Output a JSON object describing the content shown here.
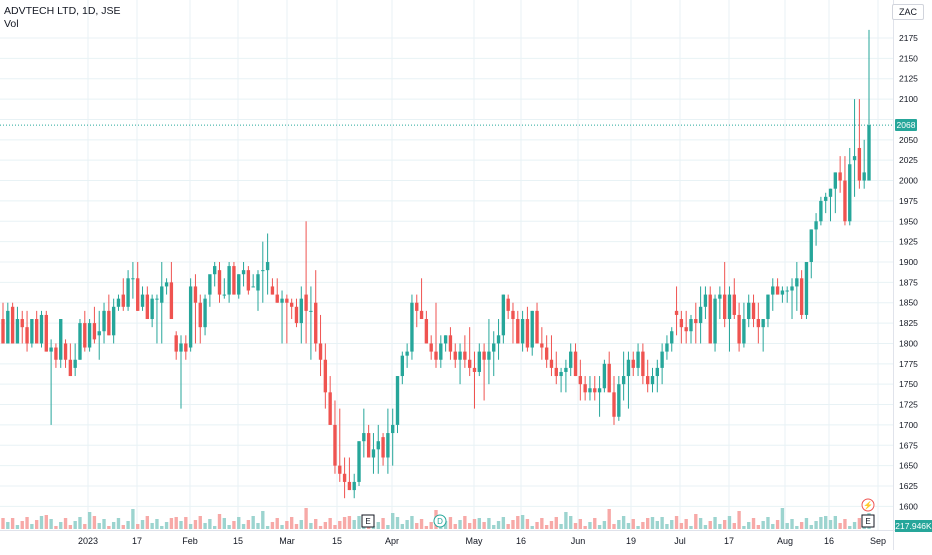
{
  "header": {
    "symbol_line": "ADVTECH LTD, 1D, JSE",
    "volume_label": "Vol",
    "currency": "ZAC"
  },
  "price_axis": {
    "ticks": [
      1600,
      1625,
      1650,
      1675,
      1700,
      1725,
      1750,
      1775,
      1800,
      1825,
      1850,
      1875,
      1900,
      1925,
      1950,
      1975,
      2000,
      2025,
      2050,
      2075,
      2100,
      2125,
      2150,
      2175
    ],
    "current_price_label": "2068",
    "current_price": 2068,
    "volume_label": "217.946K"
  },
  "time_axis": {
    "labels": [
      "2023",
      "17",
      "Feb",
      "15",
      "Mar",
      "15",
      "Apr",
      "May",
      "16",
      "Jun",
      "19",
      "Jul",
      "17",
      "Aug",
      "16",
      "Sep"
    ]
  },
  "events": {
    "earnings_marker": "E",
    "dividend_marker": "D",
    "split_marker": "⚡"
  },
  "colors": {
    "up": "#26a69a",
    "down": "#ef5350",
    "up_volume": "#9cd4cf",
    "down_volume": "#f7a9a7",
    "grid": "#e8f2f5",
    "text": "#131722"
  },
  "chart_data": {
    "type": "candlestick",
    "title": "ADVTECH LTD, 1D, JSE",
    "y_range": [
      1590,
      2195
    ],
    "candles": [
      [
        1830,
        1850,
        1800,
        1800
      ],
      [
        1800,
        1850,
        1800,
        1840
      ],
      [
        1845,
        1850,
        1800,
        1800
      ],
      [
        1800,
        1845,
        1800,
        1830
      ],
      [
        1830,
        1840,
        1800,
        1820
      ],
      [
        1820,
        1840,
        1790,
        1800
      ],
      [
        1800,
        1830,
        1795,
        1830
      ],
      [
        1830,
        1840,
        1800,
        1800
      ],
      [
        1800,
        1840,
        1795,
        1835
      ],
      [
        1835,
        1840,
        1790,
        1790
      ],
      [
        1790,
        1805,
        1700,
        1795
      ],
      [
        1795,
        1800,
        1770,
        1780
      ],
      [
        1780,
        1830,
        1770,
        1830
      ],
      [
        1800,
        1805,
        1770,
        1780
      ],
      [
        1780,
        1800,
        1760,
        1760
      ],
      [
        1770,
        1800,
        1760,
        1780
      ],
      [
        1780,
        1830,
        1780,
        1825
      ],
      [
        1825,
        1840,
        1790,
        1795
      ],
      [
        1795,
        1830,
        1790,
        1825
      ],
      [
        1825,
        1845,
        1800,
        1805
      ],
      [
        1810,
        1840,
        1780,
        1815
      ],
      [
        1815,
        1850,
        1800,
        1840
      ],
      [
        1840,
        1860,
        1810,
        1810
      ],
      [
        1810,
        1855,
        1800,
        1845
      ],
      [
        1845,
        1860,
        1840,
        1855
      ],
      [
        1860,
        1880,
        1840,
        1845
      ],
      [
        1845,
        1890,
        1840,
        1880
      ],
      [
        1880,
        1900,
        1855,
        1880
      ],
      [
        1880,
        1900,
        1840,
        1840
      ],
      [
        1845,
        1870,
        1840,
        1860
      ],
      [
        1860,
        1870,
        1830,
        1830
      ],
      [
        1830,
        1860,
        1820,
        1855
      ],
      [
        1855,
        1860,
        1800,
        1855
      ],
      [
        1850,
        1900,
        1800,
        1870
      ],
      [
        1870,
        1880,
        1860,
        1875
      ],
      [
        1875,
        1900,
        1830,
        1830
      ],
      [
        1810,
        1815,
        1780,
        1790
      ],
      [
        1790,
        1810,
        1720,
        1800
      ],
      [
        1800,
        1810,
        1780,
        1790
      ],
      [
        1795,
        1880,
        1790,
        1870
      ],
      [
        1870,
        1885,
        1800,
        1850
      ],
      [
        1850,
        1860,
        1800,
        1820
      ],
      [
        1820,
        1860,
        1810,
        1855
      ],
      [
        1860,
        1880,
        1845,
        1885
      ],
      [
        1885,
        1900,
        1870,
        1895
      ],
      [
        1890,
        1900,
        1850,
        1860
      ],
      [
        1860,
        1880,
        1855,
        1860
      ],
      [
        1860,
        1900,
        1850,
        1895
      ],
      [
        1895,
        1900,
        1860,
        1860
      ],
      [
        1860,
        1885,
        1855,
        1885
      ],
      [
        1885,
        1900,
        1870,
        1890
      ],
      [
        1890,
        1895,
        1860,
        1865
      ],
      [
        1870,
        1885,
        1870,
        1870
      ],
      [
        1865,
        1890,
        1840,
        1885
      ],
      [
        1890,
        1925,
        1850,
        1890
      ],
      [
        1890,
        1935,
        1860,
        1900
      ],
      [
        1870,
        1880,
        1860,
        1860
      ],
      [
        1860,
        1880,
        1850,
        1850
      ],
      [
        1850,
        1865,
        1800,
        1855
      ],
      [
        1855,
        1860,
        1800,
        1850
      ],
      [
        1850,
        1855,
        1830,
        1845
      ],
      [
        1845,
        1855,
        1820,
        1825
      ],
      [
        1825,
        1870,
        1800,
        1855
      ],
      [
        1860,
        1950,
        1800,
        1840
      ],
      [
        1840,
        1870,
        1780,
        1840
      ],
      [
        1850,
        1890,
        1790,
        1800
      ],
      [
        1800,
        1835,
        1760,
        1780
      ],
      [
        1780,
        1800,
        1720,
        1740
      ],
      [
        1740,
        1760,
        1700,
        1700
      ],
      [
        1700,
        1730,
        1640,
        1650
      ],
      [
        1650,
        1720,
        1630,
        1640
      ],
      [
        1640,
        1660,
        1610,
        1630
      ],
      [
        1630,
        1660,
        1620,
        1620
      ],
      [
        1620,
        1640,
        1610,
        1630
      ],
      [
        1630,
        1680,
        1625,
        1680
      ],
      [
        1680,
        1720,
        1660,
        1690
      ],
      [
        1690,
        1700,
        1660,
        1660
      ],
      [
        1660,
        1690,
        1640,
        1670
      ],
      [
        1670,
        1700,
        1640,
        1680
      ],
      [
        1685,
        1690,
        1650,
        1660
      ],
      [
        1660,
        1720,
        1640,
        1690
      ],
      [
        1690,
        1720,
        1650,
        1700
      ],
      [
        1700,
        1760,
        1690,
        1760
      ],
      [
        1760,
        1790,
        1750,
        1785
      ],
      [
        1785,
        1800,
        1770,
        1790
      ],
      [
        1790,
        1860,
        1780,
        1850
      ],
      [
        1850,
        1860,
        1820,
        1840
      ],
      [
        1840,
        1880,
        1830,
        1830
      ],
      [
        1830,
        1840,
        1800,
        1800
      ],
      [
        1800,
        1810,
        1780,
        1790
      ],
      [
        1790,
        1850,
        1770,
        1780
      ],
      [
        1780,
        1810,
        1770,
        1800
      ],
      [
        1800,
        1810,
        1790,
        1810
      ],
      [
        1810,
        1820,
        1780,
        1790
      ],
      [
        1790,
        1800,
        1770,
        1780
      ],
      [
        1780,
        1800,
        1750,
        1790
      ],
      [
        1790,
        1810,
        1770,
        1780
      ],
      [
        1780,
        1820,
        1760,
        1770
      ],
      [
        1770,
        1790,
        1720,
        1765
      ],
      [
        1765,
        1800,
        1760,
        1790
      ],
      [
        1790,
        1800,
        1730,
        1780
      ],
      [
        1780,
        1830,
        1750,
        1790
      ],
      [
        1790,
        1815,
        1760,
        1800
      ],
      [
        1800,
        1830,
        1780,
        1810
      ],
      [
        1810,
        1860,
        1800,
        1860
      ],
      [
        1855,
        1860,
        1830,
        1840
      ],
      [
        1840,
        1850,
        1800,
        1830
      ],
      [
        1830,
        1840,
        1800,
        1800
      ],
      [
        1800,
        1840,
        1790,
        1830
      ],
      [
        1830,
        1845,
        1790,
        1795
      ],
      [
        1795,
        1840,
        1785,
        1840
      ],
      [
        1840,
        1850,
        1800,
        1800
      ],
      [
        1800,
        1820,
        1780,
        1795
      ],
      [
        1795,
        1810,
        1770,
        1780
      ],
      [
        1780,
        1810,
        1760,
        1770
      ],
      [
        1770,
        1790,
        1750,
        1760
      ],
      [
        1760,
        1770,
        1740,
        1765
      ],
      [
        1765,
        1780,
        1740,
        1770
      ],
      [
        1770,
        1800,
        1760,
        1790
      ],
      [
        1790,
        1800,
        1760,
        1760
      ],
      [
        1760,
        1780,
        1730,
        1750
      ],
      [
        1750,
        1760,
        1730,
        1740
      ],
      [
        1740,
        1760,
        1730,
        1745
      ],
      [
        1745,
        1760,
        1730,
        1740
      ],
      [
        1740,
        1760,
        1710,
        1745
      ],
      [
        1745,
        1780,
        1740,
        1775
      ],
      [
        1775,
        1790,
        1740,
        1740
      ],
      [
        1740,
        1760,
        1700,
        1710
      ],
      [
        1710,
        1760,
        1705,
        1750
      ],
      [
        1750,
        1790,
        1730,
        1760
      ],
      [
        1760,
        1790,
        1720,
        1780
      ],
      [
        1780,
        1790,
        1760,
        1770
      ],
      [
        1770,
        1800,
        1760,
        1790
      ],
      [
        1790,
        1800,
        1750,
        1760
      ],
      [
        1760,
        1780,
        1740,
        1750
      ],
      [
        1750,
        1770,
        1740,
        1760
      ],
      [
        1760,
        1780,
        1740,
        1770
      ],
      [
        1770,
        1800,
        1750,
        1790
      ],
      [
        1790,
        1810,
        1780,
        1800
      ],
      [
        1800,
        1820,
        1790,
        1815
      ],
      [
        1840,
        1870,
        1810,
        1835
      ],
      [
        1830,
        1840,
        1800,
        1820
      ],
      [
        1820,
        1840,
        1800,
        1815
      ],
      [
        1815,
        1835,
        1800,
        1830
      ],
      [
        1830,
        1850,
        1800,
        1825
      ],
      [
        1825,
        1870,
        1800,
        1845
      ],
      [
        1845,
        1870,
        1830,
        1860
      ],
      [
        1860,
        1870,
        1800,
        1800
      ],
      [
        1800,
        1860,
        1790,
        1855
      ],
      [
        1855,
        1870,
        1830,
        1860
      ],
      [
        1860,
        1900,
        1820,
        1830
      ],
      [
        1830,
        1870,
        1790,
        1860
      ],
      [
        1860,
        1880,
        1830,
        1835
      ],
      [
        1835,
        1850,
        1790,
        1800
      ],
      [
        1800,
        1850,
        1795,
        1830
      ],
      [
        1830,
        1860,
        1820,
        1850
      ],
      [
        1850,
        1860,
        1820,
        1830
      ],
      [
        1830,
        1850,
        1800,
        1820
      ],
      [
        1820,
        1830,
        1790,
        1830
      ],
      [
        1830,
        1860,
        1820,
        1860
      ],
      [
        1860,
        1880,
        1840,
        1870
      ],
      [
        1870,
        1880,
        1860,
        1860
      ],
      [
        1860,
        1870,
        1850,
        1865
      ],
      [
        1865,
        1870,
        1850,
        1865
      ],
      [
        1865,
        1880,
        1830,
        1870
      ],
      [
        1870,
        1900,
        1840,
        1880
      ],
      [
        1880,
        1890,
        1830,
        1835
      ],
      [
        1835,
        1900,
        1830,
        1900
      ],
      [
        1900,
        1940,
        1880,
        1940
      ],
      [
        1940,
        1960,
        1920,
        1950
      ],
      [
        1950,
        1980,
        1945,
        1975
      ],
      [
        1975,
        1985,
        1960,
        1980
      ],
      [
        1980,
        1990,
        1950,
        1990
      ],
      [
        1990,
        2010,
        1960,
        2010
      ],
      [
        2010,
        2030,
        1985,
        2000
      ],
      [
        2000,
        2030,
        1945,
        1950
      ],
      [
        1950,
        2040,
        1945,
        2020
      ],
      [
        2025,
        2100,
        1980,
        2030
      ],
      [
        2040,
        2100,
        1990,
        2000
      ],
      [
        2000,
        2050,
        1990,
        2010
      ],
      [
        2000,
        2185,
        2000,
        2068
      ]
    ],
    "volume_scale_max_k": 1000
  }
}
